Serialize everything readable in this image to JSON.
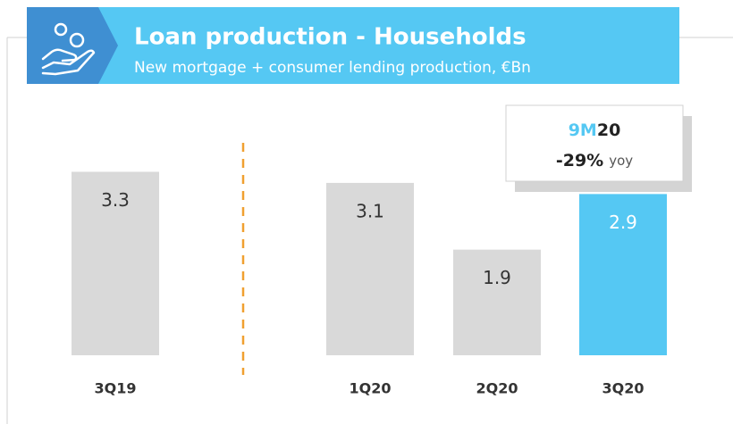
{
  "chart_data": {
    "type": "bar",
    "title": "Loan production - Households",
    "subtitle": "New mortgage + consumer lending production, €Bn",
    "categories": [
      "3Q19",
      "1Q20",
      "2Q20",
      "3Q20"
    ],
    "values": [
      3.3,
      3.1,
      1.9,
      2.9
    ],
    "colors": [
      "#d9d9d9",
      "#d9d9d9",
      "#d9d9d9",
      "#55c8f3"
    ],
    "label_colors": [
      "#333333",
      "#333333",
      "#333333",
      "#ffffff"
    ],
    "ylim": [
      0,
      3.5
    ],
    "annotation": {
      "period_prefix": "9M",
      "period_suffix": "20",
      "change": "-29%",
      "change_unit": "yoy"
    }
  }
}
